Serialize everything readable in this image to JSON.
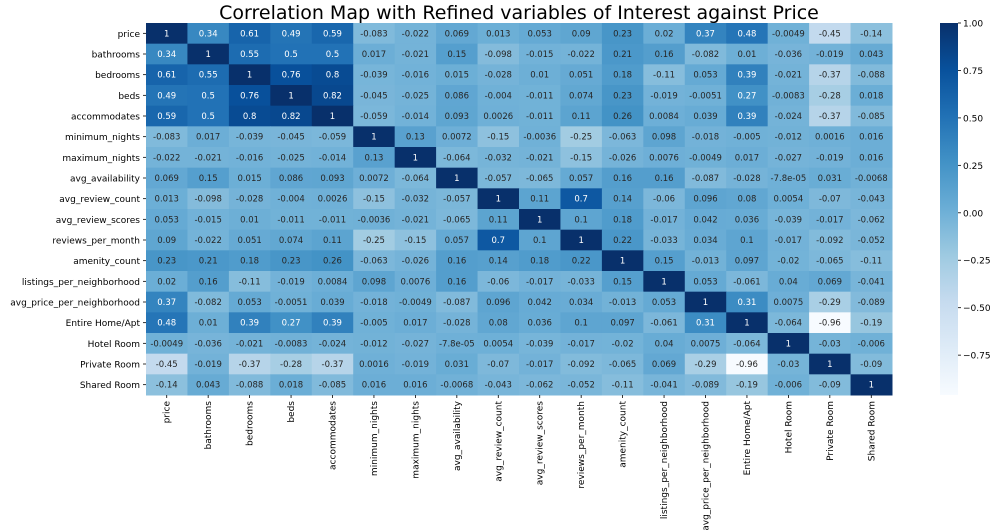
{
  "chart_data": {
    "type": "heatmap",
    "title": "Correlation Map with Refined variables of Interest against Price",
    "variables": [
      "price",
      "bathrooms",
      "bedrooms",
      "beds",
      "accommodates",
      "minimum_nights",
      "maximum_nights",
      "avg_availability",
      "avg_review_count",
      "avg_review_scores",
      "reviews_per_month",
      "amenity_count",
      "listings_per_neighborhood",
      "avg_price_per_neighborhood",
      "Entire Home/Apt",
      "Hotel Room",
      "Private Room",
      "Shared Room"
    ],
    "values": [
      [
        1,
        0.34,
        0.61,
        0.49,
        0.59,
        -0.083,
        -0.022,
        0.069,
        0.013,
        0.053,
        0.09,
        0.23,
        0.02,
        0.37,
        0.48,
        -0.0049,
        -0.45,
        -0.14
      ],
      [
        0.34,
        1,
        0.55,
        0.5,
        0.5,
        0.017,
        -0.021,
        0.15,
        -0.098,
        -0.015,
        -0.022,
        0.21,
        0.16,
        -0.082,
        0.01,
        -0.036,
        -0.019,
        0.043
      ],
      [
        0.61,
        0.55,
        1,
        0.76,
        0.8,
        -0.039,
        -0.016,
        0.015,
        -0.028,
        0.01,
        0.051,
        0.18,
        -0.11,
        0.053,
        0.39,
        -0.021,
        -0.37,
        -0.088
      ],
      [
        0.49,
        0.5,
        0.76,
        1,
        0.82,
        -0.045,
        -0.025,
        0.086,
        -0.004,
        -0.011,
        0.074,
        0.23,
        -0.019,
        -0.0051,
        0.27,
        -0.0083,
        -0.28,
        0.018
      ],
      [
        0.59,
        0.5,
        0.8,
        0.82,
        1,
        -0.059,
        -0.014,
        0.093,
        0.0026,
        -0.011,
        0.11,
        0.26,
        0.0084,
        0.039,
        0.39,
        -0.024,
        -0.37,
        -0.085
      ],
      [
        -0.083,
        0.017,
        -0.039,
        -0.045,
        -0.059,
        1,
        0.13,
        0.0072,
        -0.15,
        -0.0036,
        -0.25,
        -0.063,
        0.098,
        -0.018,
        -0.005,
        -0.012,
        0.0016,
        0.016
      ],
      [
        -0.022,
        -0.021,
        -0.016,
        -0.025,
        -0.014,
        0.13,
        1,
        -0.064,
        -0.032,
        -0.021,
        -0.15,
        -0.026,
        0.0076,
        -0.0049,
        0.017,
        -0.027,
        -0.019,
        0.016
      ],
      [
        0.069,
        0.15,
        0.015,
        0.086,
        0.093,
        0.0072,
        -0.064,
        1,
        -0.057,
        -0.065,
        0.057,
        0.16,
        0.16,
        -0.087,
        -0.028,
        -7.8e-05,
        0.031,
        -0.0068
      ],
      [
        0.013,
        -0.098,
        -0.028,
        -0.004,
        0.0026,
        -0.15,
        -0.032,
        -0.057,
        1,
        0.11,
        0.7,
        0.14,
        -0.06,
        0.096,
        0.08,
        0.0054,
        -0.07,
        -0.043
      ],
      [
        0.053,
        -0.015,
        0.01,
        -0.011,
        -0.011,
        -0.0036,
        -0.021,
        -0.065,
        0.11,
        1,
        0.1,
        0.18,
        -0.017,
        0.042,
        0.036,
        -0.039,
        -0.017,
        -0.062
      ],
      [
        0.09,
        -0.022,
        0.051,
        0.074,
        0.11,
        -0.25,
        -0.15,
        0.057,
        0.7,
        0.1,
        1,
        0.22,
        -0.033,
        0.034,
        0.1,
        -0.017,
        -0.092,
        -0.052
      ],
      [
        0.23,
        0.21,
        0.18,
        0.23,
        0.26,
        -0.063,
        -0.026,
        0.16,
        0.14,
        0.18,
        0.22,
        1,
        0.15,
        -0.013,
        0.097,
        -0.02,
        -0.065,
        -0.11
      ],
      [
        0.02,
        0.16,
        -0.11,
        -0.019,
        0.0084,
        0.098,
        0.0076,
        0.16,
        -0.06,
        -0.017,
        -0.033,
        0.15,
        1,
        0.053,
        -0.061,
        0.04,
        0.069,
        -0.041
      ],
      [
        0.37,
        -0.082,
        0.053,
        -0.0051,
        0.039,
        -0.018,
        -0.0049,
        -0.087,
        0.096,
        0.042,
        0.034,
        -0.013,
        0.053,
        1,
        0.31,
        0.0075,
        -0.29,
        -0.089
      ],
      [
        0.48,
        0.01,
        0.39,
        0.27,
        0.39,
        -0.005,
        0.017,
        -0.028,
        0.08,
        0.036,
        0.1,
        0.097,
        -0.061,
        0.31,
        1,
        -0.064,
        -0.96,
        -0.19
      ],
      [
        -0.0049,
        -0.036,
        -0.021,
        -0.0083,
        -0.024,
        -0.012,
        -0.027,
        -7.8e-05,
        0.0054,
        -0.039,
        -0.017,
        -0.02,
        0.04,
        0.0075,
        -0.064,
        1,
        -0.03,
        -0.006
      ],
      [
        -0.45,
        -0.019,
        -0.37,
        -0.28,
        -0.37,
        0.0016,
        -0.019,
        0.031,
        -0.07,
        -0.017,
        -0.092,
        -0.065,
        0.069,
        -0.29,
        -0.96,
        -0.03,
        1,
        -0.09
      ],
      [
        -0.14,
        0.043,
        -0.088,
        0.018,
        -0.085,
        0.016,
        0.016,
        -0.0068,
        -0.043,
        -0.062,
        -0.052,
        -0.11,
        -0.041,
        -0.089,
        -0.19,
        -0.006,
        -0.09,
        1
      ]
    ],
    "labels": [
      [
        "1",
        "0.34",
        "0.61",
        "0.49",
        "0.59",
        "-0.083",
        "-0.022",
        "0.069",
        "0.013",
        "0.053",
        "0.09",
        "0.23",
        "0.02",
        "0.37",
        "0.48",
        "-0.0049",
        "-0.45",
        "-0.14"
      ],
      [
        "0.34",
        "1",
        "0.55",
        "0.5",
        "0.5",
        "0.017",
        "-0.021",
        "0.15",
        "-0.098",
        "-0.015",
        "-0.022",
        "0.21",
        "0.16",
        "-0.082",
        "0.01",
        "-0.036",
        "-0.019",
        "0.043"
      ],
      [
        "0.61",
        "0.55",
        "1",
        "0.76",
        "0.8",
        "-0.039",
        "-0.016",
        "0.015",
        "-0.028",
        "0.01",
        "0.051",
        "0.18",
        "-0.11",
        "0.053",
        "0.39",
        "-0.021",
        "-0.37",
        "-0.088"
      ],
      [
        "0.49",
        "0.5",
        "0.76",
        "1",
        "0.82",
        "-0.045",
        "-0.025",
        "0.086",
        "-0.004",
        "-0.011",
        "0.074",
        "0.23",
        "-0.019",
        "-0.0051",
        "0.27",
        "-0.0083",
        "-0.28",
        "0.018"
      ],
      [
        "0.59",
        "0.5",
        "0.8",
        "0.82",
        "1",
        "-0.059",
        "-0.014",
        "0.093",
        "0.0026",
        "-0.011",
        "0.11",
        "0.26",
        "0.0084",
        "0.039",
        "0.39",
        "-0.024",
        "-0.37",
        "-0.085"
      ],
      [
        "-0.083",
        "0.017",
        "-0.039",
        "-0.045",
        "-0.059",
        "1",
        "0.13",
        "0.0072",
        "-0.15",
        "-0.0036",
        "-0.25",
        "-0.063",
        "0.098",
        "-0.018",
        "-0.005",
        "-0.012",
        "0.0016",
        "0.016"
      ],
      [
        "-0.022",
        "-0.021",
        "-0.016",
        "-0.025",
        "-0.014",
        "0.13",
        "1",
        "-0.064",
        "-0.032",
        "-0.021",
        "-0.15",
        "-0.026",
        "0.0076",
        "-0.0049",
        "0.017",
        "-0.027",
        "-0.019",
        "0.016"
      ],
      [
        "0.069",
        "0.15",
        "0.015",
        "0.086",
        "0.093",
        "0.0072",
        "-0.064",
        "1",
        "-0.057",
        "-0.065",
        "0.057",
        "0.16",
        "0.16",
        "-0.087",
        "-0.028",
        "-7.8e-05",
        "0.031",
        "-0.0068"
      ],
      [
        "0.013",
        "-0.098",
        "-0.028",
        "-0.004",
        "0.0026",
        "-0.15",
        "-0.032",
        "-0.057",
        "1",
        "0.11",
        "0.7",
        "0.14",
        "-0.06",
        "0.096",
        "0.08",
        "0.0054",
        "-0.07",
        "-0.043"
      ],
      [
        "0.053",
        "-0.015",
        "0.01",
        "-0.011",
        "-0.011",
        "-0.0036",
        "-0.021",
        "-0.065",
        "0.11",
        "1",
        "0.1",
        "0.18",
        "-0.017",
        "0.042",
        "0.036",
        "-0.039",
        "-0.017",
        "-0.062"
      ],
      [
        "0.09",
        "-0.022",
        "0.051",
        "0.074",
        "0.11",
        "-0.25",
        "-0.15",
        "0.057",
        "0.7",
        "0.1",
        "1",
        "0.22",
        "-0.033",
        "0.034",
        "0.1",
        "-0.017",
        "-0.092",
        "-0.052"
      ],
      [
        "0.23",
        "0.21",
        "0.18",
        "0.23",
        "0.26",
        "-0.063",
        "-0.026",
        "0.16",
        "0.14",
        "0.18",
        "0.22",
        "1",
        "0.15",
        "-0.013",
        "0.097",
        "-0.02",
        "-0.065",
        "-0.11"
      ],
      [
        "0.02",
        "0.16",
        "-0.11",
        "-0.019",
        "0.0084",
        "0.098",
        "0.0076",
        "0.16",
        "-0.06",
        "-0.017",
        "-0.033",
        "0.15",
        "1",
        "0.053",
        "-0.061",
        "0.04",
        "0.069",
        "-0.041"
      ],
      [
        "0.37",
        "-0.082",
        "0.053",
        "-0.0051",
        "0.039",
        "-0.018",
        "-0.0049",
        "-0.087",
        "0.096",
        "0.042",
        "0.034",
        "-0.013",
        "0.053",
        "1",
        "0.31",
        "0.0075",
        "-0.29",
        "-0.089"
      ],
      [
        "0.48",
        "0.01",
        "0.39",
        "0.27",
        "0.39",
        "-0.005",
        "0.017",
        "-0.028",
        "0.08",
        "0.036",
        "0.1",
        "0.097",
        "-0.061",
        "0.31",
        "1",
        "-0.064",
        "-0.96",
        "-0.19"
      ],
      [
        "-0.0049",
        "-0.036",
        "-0.021",
        "-0.0083",
        "-0.024",
        "-0.012",
        "-0.027",
        "-7.8e-05",
        "0.0054",
        "-0.039",
        "-0.017",
        "-0.02",
        "0.04",
        "0.0075",
        "-0.064",
        "1",
        "-0.03",
        "-0.006"
      ],
      [
        "-0.45",
        "-0.019",
        "-0.37",
        "-0.28",
        "-0.37",
        "0.0016",
        "-0.019",
        "0.031",
        "-0.07",
        "-0.017",
        "-0.092",
        "-0.065",
        "0.069",
        "-0.29",
        "-0.96",
        "-0.03",
        "1",
        "-0.09"
      ],
      [
        "-0.14",
        "0.043",
        "-0.088",
        "0.018",
        "-0.085",
        "0.016",
        "0.016",
        "-0.0068",
        "-0.043",
        "-0.062",
        "-0.052",
        "-0.11",
        "-0.041",
        "-0.089",
        "-0.19",
        "-0.006",
        "-0.09",
        "1"
      ]
    ],
    "colorbar": {
      "vmin": -0.96,
      "vmax": 1,
      "ticks": [
        -0.75,
        -0.5,
        -0.25,
        0,
        0.25,
        0.5,
        0.75,
        1
      ],
      "tick_labels": [
        "−0.75",
        "−0.50",
        "−0.25",
        "0.00",
        "0.25",
        "0.50",
        "0.75",
        "1.00"
      ]
    },
    "colormap": {
      "name": "Blues",
      "stops": [
        "#f7fbff",
        "#deebf7",
        "#c6dbef",
        "#9ecae1",
        "#6baed6",
        "#4292c6",
        "#2171b5",
        "#08519c",
        "#08306b"
      ]
    },
    "grid": false
  }
}
